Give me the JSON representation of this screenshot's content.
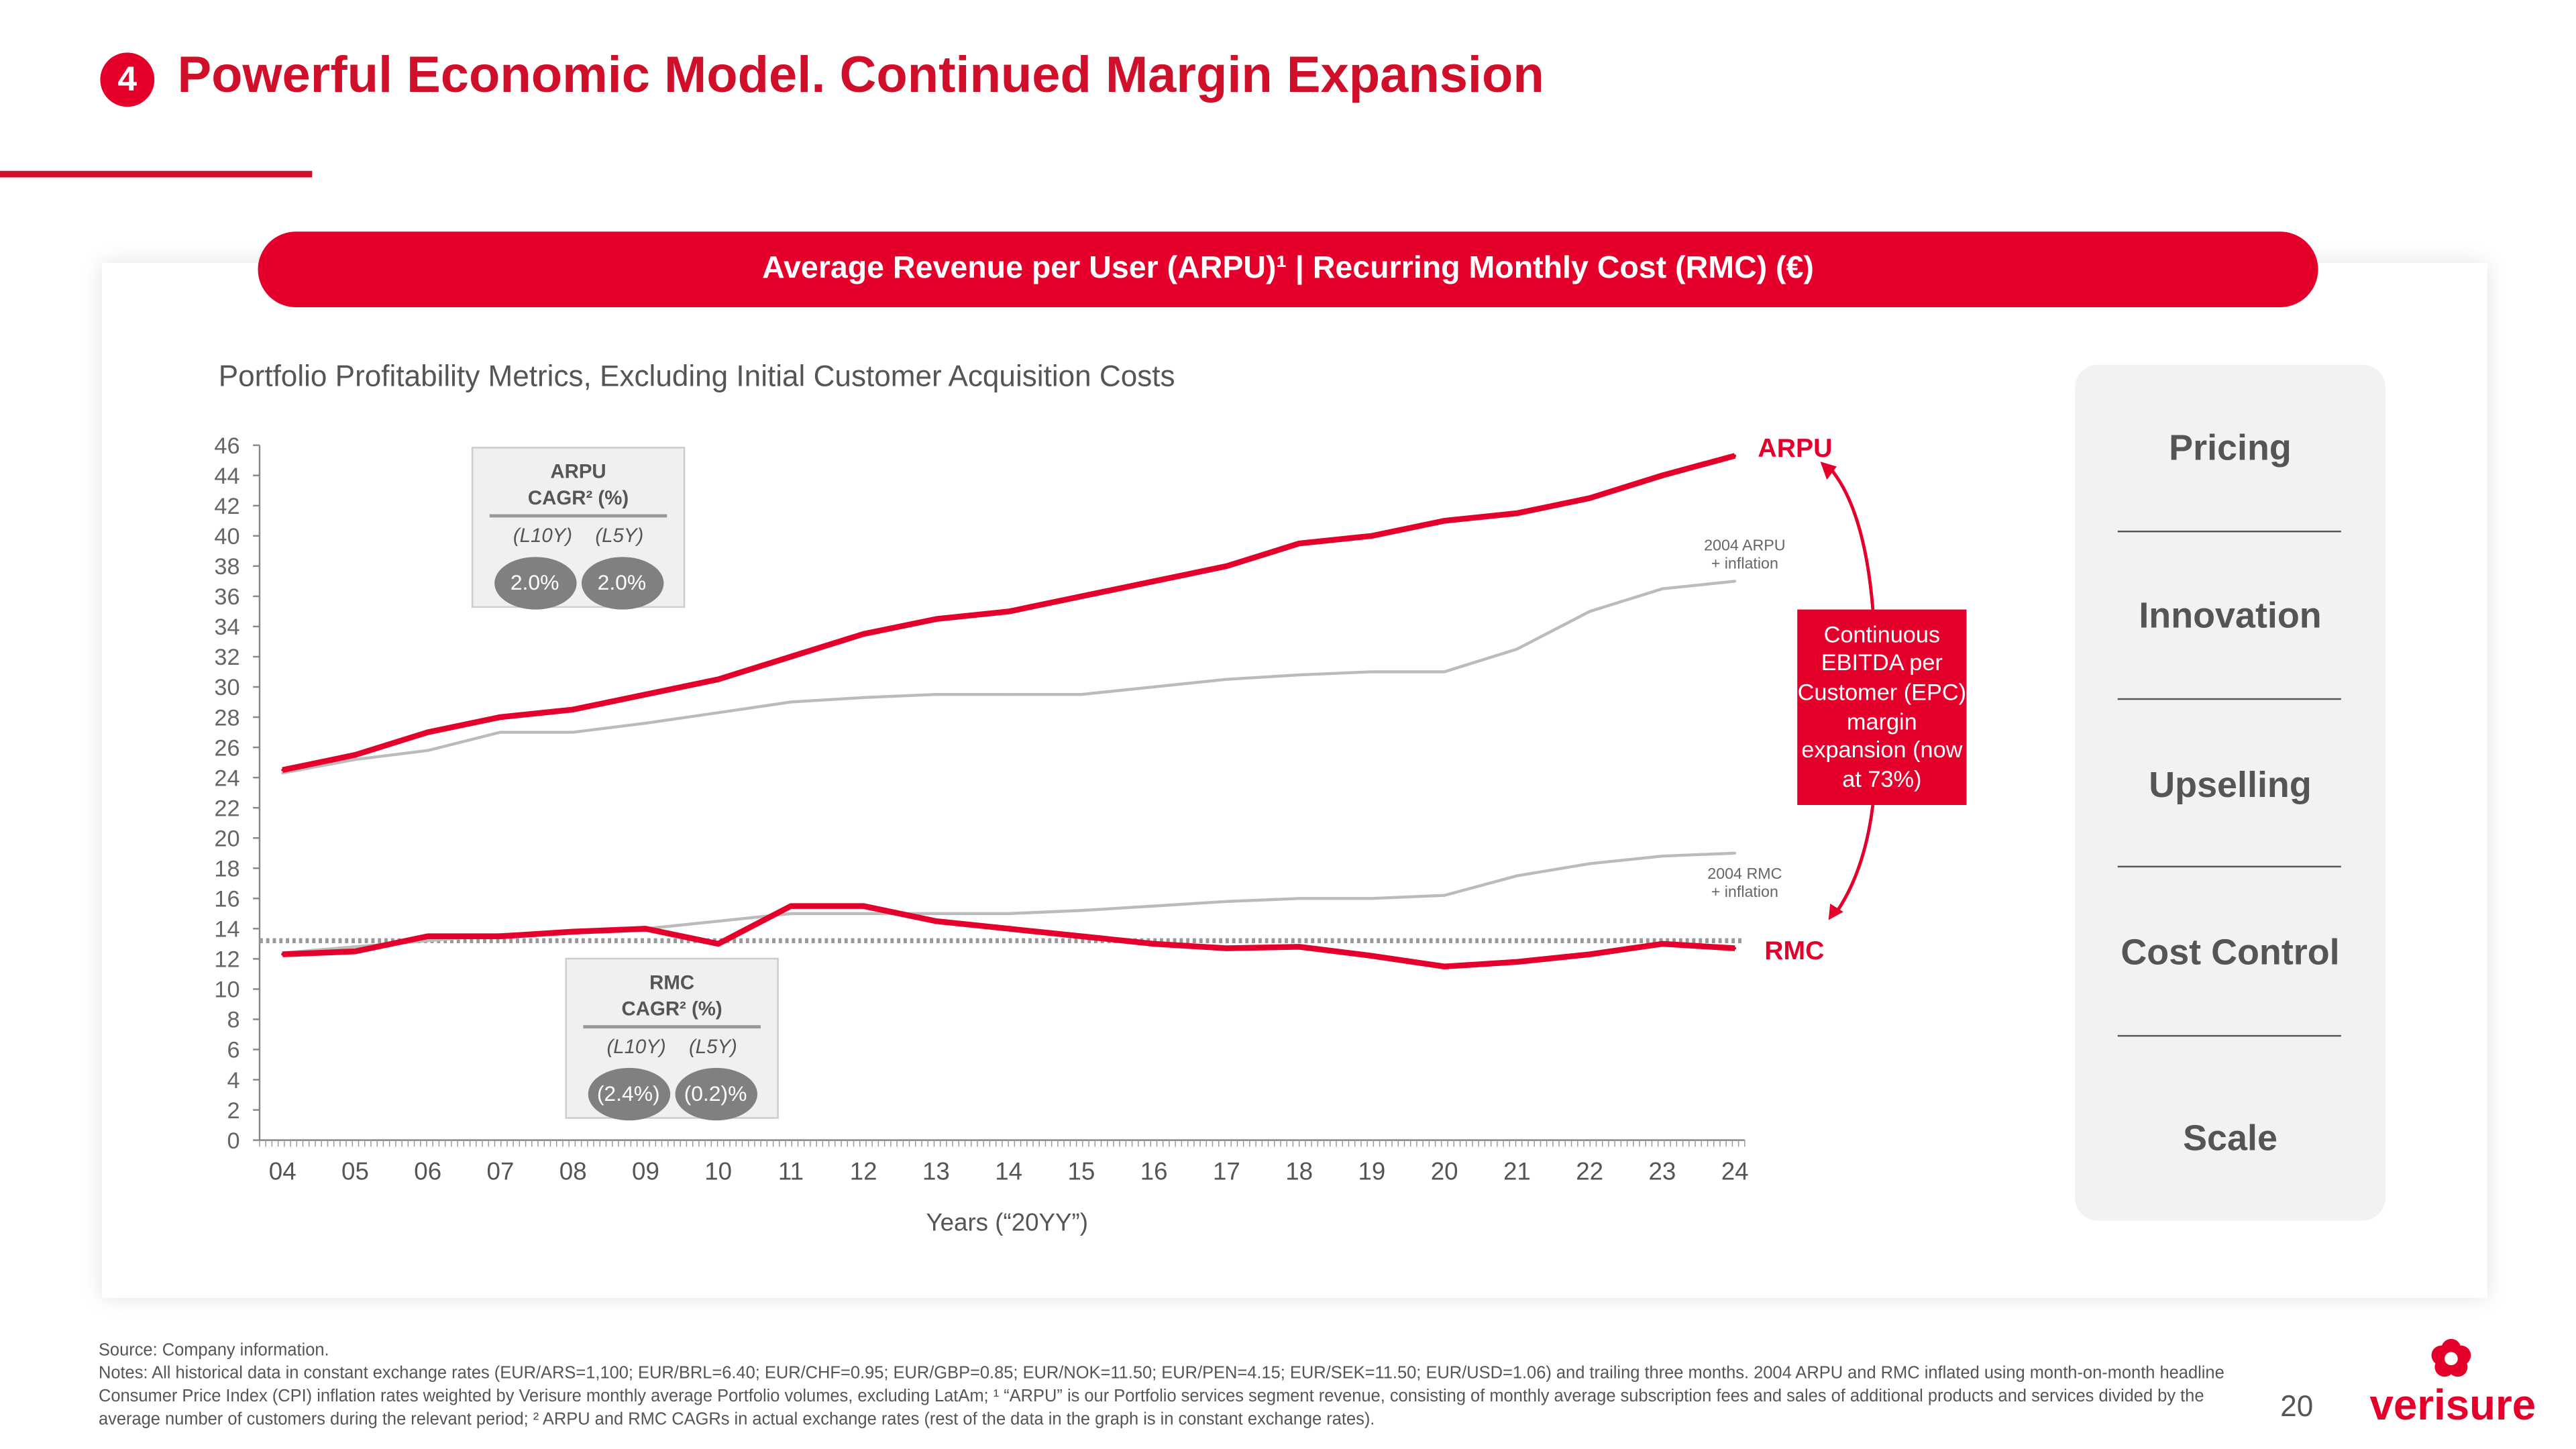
{
  "header": {
    "number": "4",
    "title": "Powerful Economic Model. Continued Margin Expansion"
  },
  "banner": "Average Revenue per User (ARPU)¹ | Recurring Monthly Cost (RMC) (€)",
  "subtitle": "Portfolio Profitability Metrics, Excluding Initial Customer Acquisition Costs",
  "arpu_cagr": {
    "title1": "ARPU",
    "title2": "CAGR² (%)",
    "periods": [
      "(L10Y)",
      "(L5Y)"
    ],
    "values": [
      "2.0%",
      "2.0%"
    ]
  },
  "rmc_cagr": {
    "title1": "RMC",
    "title2": "CAGR² (%)",
    "periods": [
      "(L10Y)",
      "(L5Y)"
    ],
    "values": [
      "(2.4%)",
      "(0.2)%"
    ]
  },
  "callout": "Continuous EBITDA per Customer (EPC) margin expansion (now at 73%)",
  "panel": [
    "Pricing",
    "Innovation",
    "Upselling",
    "Cost Control",
    "Scale"
  ],
  "footer": {
    "source": "Source: Company information.",
    "notes": "Notes: All historical data in constant exchange rates (EUR/ARS=1,100; EUR/BRL=6.40; EUR/CHF=0.95; EUR/GBP=0.85; EUR/NOK=11.50; EUR/PEN=4.15; EUR/SEK=11.50; EUR/USD=1.06) and trailing three months. 2004 ARPU and RMC inflated using month-on-month headline Consumer Price Index (CPI) inflation rates weighted by Verisure monthly average Portfolio volumes, excluding LatAm; ¹ “ARPU” is our Portfolio services segment revenue, consisting of monthly average subscription fees and sales of additional products and services divided by the average number of customers during the relevant period; ² ARPU and RMC CAGRs in actual exchange rates (rest of the data in the graph is in constant exchange rates).",
    "page": "20",
    "logo": "verisure"
  },
  "colors": {
    "brand": "#e4002b",
    "inflation": "#bbbbbb",
    "reference": "#999999"
  },
  "chart_data": {
    "type": "line",
    "xlabel": "Years (“20YY”)",
    "x_ticks": [
      "04",
      "05",
      "06",
      "07",
      "08",
      "09",
      "10",
      "11",
      "12",
      "13",
      "14",
      "15",
      "16",
      "17",
      "18",
      "19",
      "20",
      "21",
      "22",
      "23",
      "24"
    ],
    "y_ticks": [
      0,
      2,
      4,
      6,
      8,
      10,
      12,
      14,
      16,
      18,
      20,
      22,
      24,
      26,
      28,
      30,
      32,
      34,
      36,
      38,
      40,
      42,
      44,
      46
    ],
    "ylim": [
      0,
      46
    ],
    "series": [
      {
        "name": "ARPU",
        "color": "#e4002b",
        "values": [
          24.5,
          25.5,
          27,
          28,
          28.5,
          29.5,
          30.5,
          32,
          33.5,
          34.5,
          35,
          36,
          37,
          38,
          39.5,
          40,
          41,
          41.5,
          42.5,
          44,
          45.3
        ]
      },
      {
        "name": "2004 ARPU + inflation",
        "color": "#bbbbbb",
        "values": [
          24.3,
          25.2,
          25.8,
          27,
          27,
          27.6,
          28.3,
          29,
          29.3,
          29.5,
          29.5,
          29.5,
          30,
          30.5,
          30.8,
          31,
          31,
          32.5,
          35,
          36.5,
          37
        ]
      },
      {
        "name": "RMC",
        "color": "#e4002b",
        "values": [
          12.3,
          12.5,
          13.5,
          13.5,
          13.8,
          14,
          13,
          15.5,
          15.5,
          14.5,
          14,
          13.5,
          13,
          12.7,
          12.8,
          12.2,
          11.5,
          11.8,
          12.3,
          13,
          12.7
        ]
      },
      {
        "name": "2004 RMC + inflation",
        "color": "#bbbbbb",
        "values": [
          12.4,
          12.8,
          13.2,
          13.6,
          13.8,
          14,
          14.5,
          15,
          15,
          15,
          15,
          15.2,
          15.5,
          15.8,
          16,
          16,
          16.2,
          17.5,
          18.3,
          18.8,
          19
        ]
      }
    ],
    "reference_line": 13.2,
    "labels": {
      "arpu": "ARPU",
      "rmc": "RMC",
      "arpu_infl_1": "2004 ARPU",
      "arpu_infl_2": "+ inflation",
      "rmc_infl_1": "2004 RMC",
      "rmc_infl_2": "+ inflation"
    },
    "grid": false
  }
}
